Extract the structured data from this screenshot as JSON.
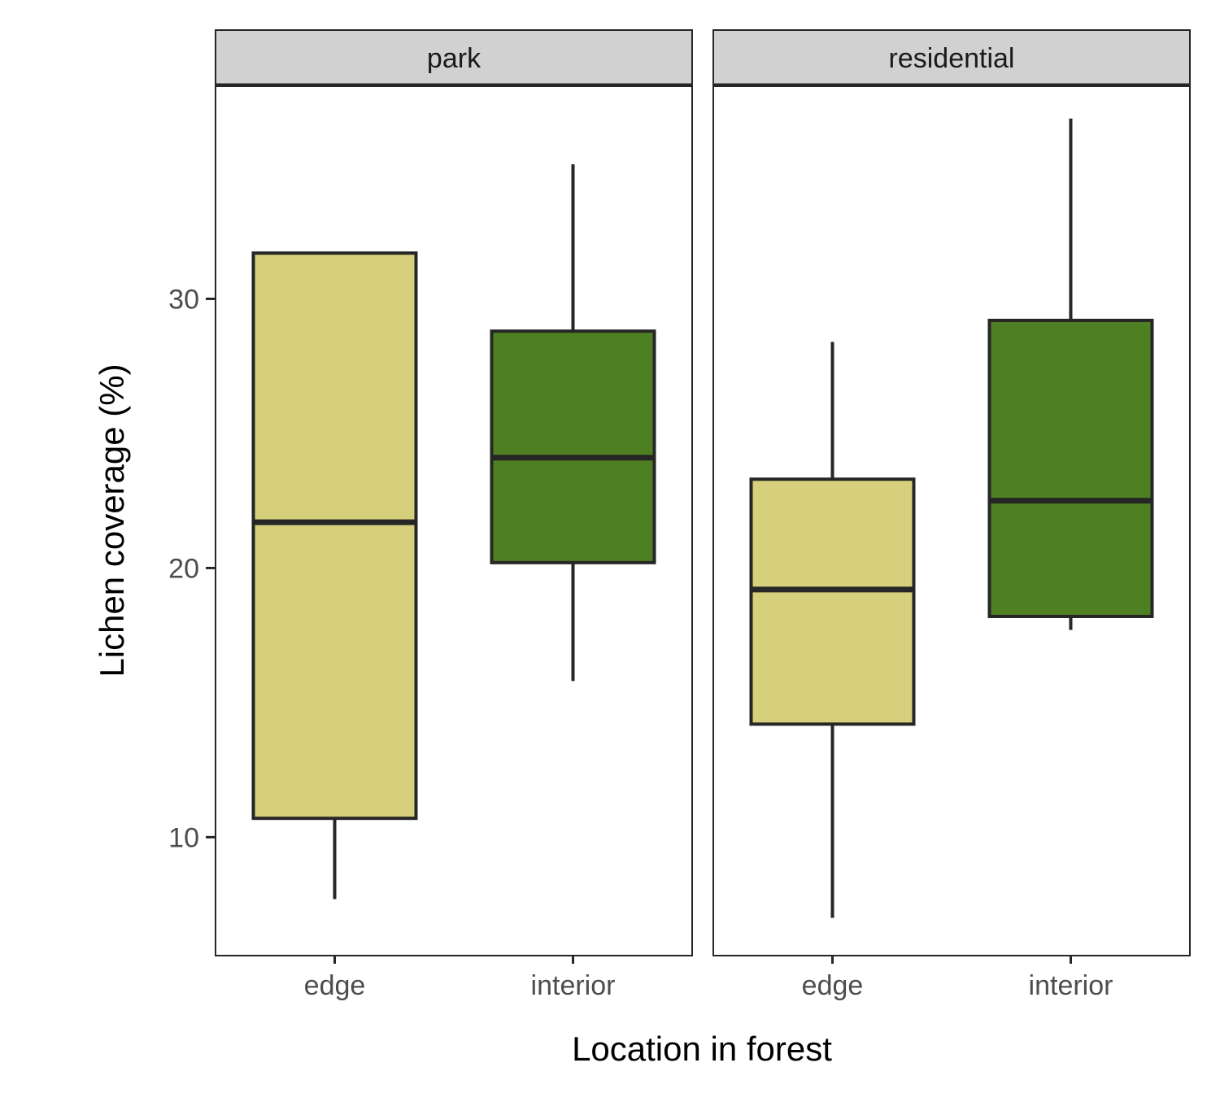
{
  "chart_data": {
    "type": "box",
    "xlabel": "Location in forest",
    "ylabel": "Lichen coverage (%)",
    "ylim": [
      5.6,
      37.9
    ],
    "yticks": [
      10,
      20,
      30
    ],
    "categories": [
      "edge",
      "interior"
    ],
    "fill_colors": {
      "edge": "#d6d07c",
      "interior": "#4f7f23"
    },
    "panels": [
      {
        "label": "park",
        "boxes": [
          {
            "category": "edge",
            "whisker_low": 7.7,
            "q1": 10.7,
            "median": 21.7,
            "q3": 31.7,
            "whisker_high": 31.7
          },
          {
            "category": "interior",
            "whisker_low": 15.8,
            "q1": 20.2,
            "median": 24.1,
            "q3": 28.8,
            "whisker_high": 35.0
          }
        ]
      },
      {
        "label": "residential",
        "boxes": [
          {
            "category": "edge",
            "whisker_low": 7.0,
            "q1": 14.2,
            "median": 19.2,
            "q3": 23.3,
            "whisker_high": 28.4
          },
          {
            "category": "interior",
            "whisker_low": 17.7,
            "q1": 18.2,
            "median": 22.5,
            "q3": 29.2,
            "whisker_high": 36.7
          }
        ]
      }
    ]
  }
}
